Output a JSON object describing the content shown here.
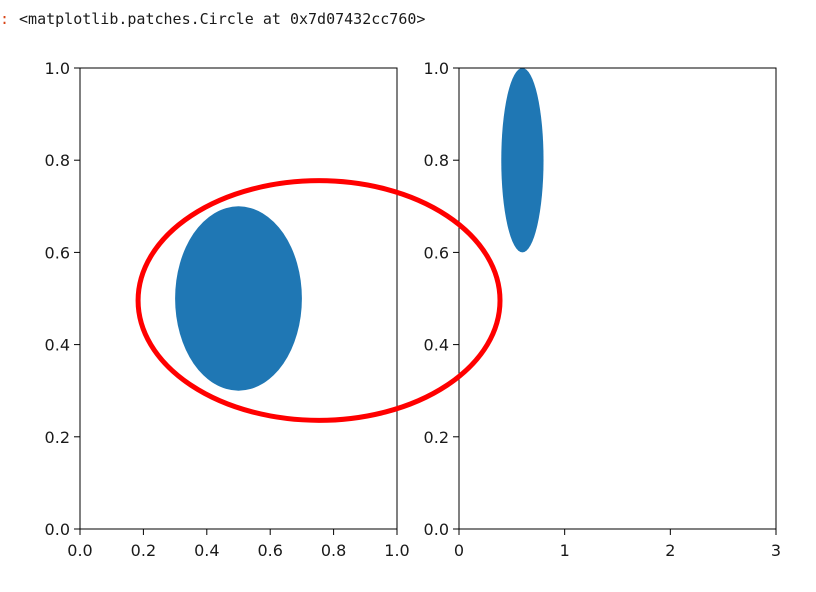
{
  "output": {
    "prompt": ":",
    "repr_text": "<matplotlib.patches.Circle at 0x7d07432cc760>"
  },
  "chart_data": [
    {
      "type": "scatter",
      "title": "",
      "xlabel": "",
      "ylabel": "",
      "xlim": [
        0,
        1
      ],
      "ylim": [
        0,
        1
      ],
      "grid": false,
      "xticks": [
        "0.0",
        "0.2",
        "0.4",
        "0.6",
        "0.8",
        "1.0"
      ],
      "yticks": [
        "0.0",
        "0.2",
        "0.4",
        "0.6",
        "0.8",
        "1.0"
      ],
      "shapes": [
        {
          "kind": "circle",
          "center": [
            0.5,
            0.5
          ],
          "radius": 0.2,
          "fill": "#1f77b4"
        },
        {
          "kind": "circle_outline",
          "coords": "figure",
          "center": [
            0.5,
            0.5
          ],
          "radius": 0.25,
          "edgecolor": "#ff0000",
          "linewidth": 5
        }
      ]
    },
    {
      "type": "scatter",
      "title": "",
      "xlabel": "",
      "ylabel": "",
      "xlim": [
        0,
        3
      ],
      "ylim": [
        0,
        1
      ],
      "grid": false,
      "xticks": [
        "0",
        "1",
        "2",
        "3"
      ],
      "yticks": [
        "0.0",
        "0.2",
        "0.4",
        "0.6",
        "0.8",
        "1.0"
      ],
      "shapes": [
        {
          "kind": "circle",
          "center": [
            0.6,
            0.8
          ],
          "radius": 0.2,
          "fill": "#1f77b4"
        }
      ]
    }
  ]
}
